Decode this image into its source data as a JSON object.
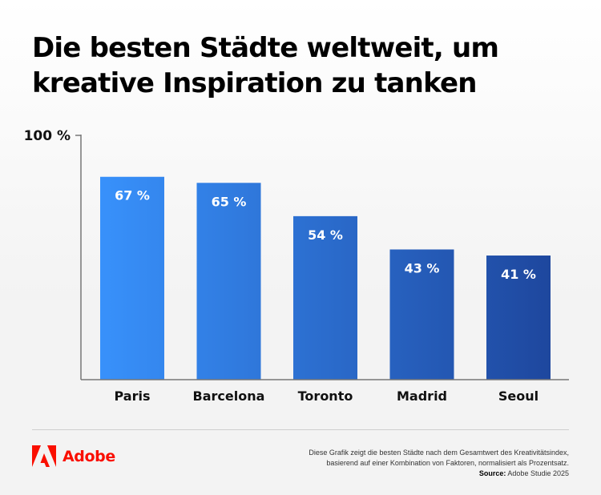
{
  "title": "Die besten Städte weltweit, um kreative Inspiration zu tanken",
  "chart_data": {
    "type": "bar",
    "title": "Die besten Städte weltweit, um kreative Inspiration zu tanken",
    "categories": [
      "Paris",
      "Barcelona",
      "Toronto",
      "Madrid",
      "Seoul"
    ],
    "values": [
      67,
      65,
      54,
      43,
      41
    ],
    "data_labels": [
      "67 %",
      "65 %",
      "54 %",
      "43 %",
      "41 %"
    ],
    "y_tick_label": "100 %",
    "ylim": [
      0,
      100
    ],
    "grid": false,
    "colors": {
      "start": "#3891fb",
      "end": "#1e479e"
    }
  },
  "footer": {
    "brand": "Adobe",
    "brand_color": "#fa0f00",
    "note_line1": "Diese Grafik zeigt die besten Städte nach dem Gesamtwert des Kreativitätsindex,",
    "note_line2": "basierend auf einer Kombination von Faktoren, normalisiert als Prozentsatz.",
    "source_label": "Source:",
    "source_value": "Adobe Studie 2025"
  }
}
